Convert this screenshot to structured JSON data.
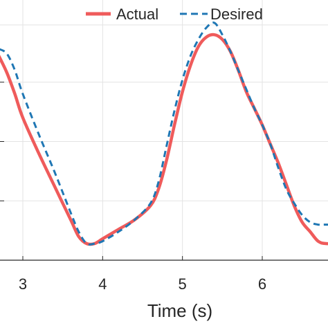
{
  "chart_data": {
    "type": "line",
    "title": "",
    "xlabel": "Time (s)",
    "ylabel": "",
    "xlim": [
      2.7,
      7.8
    ],
    "ylim": [
      0,
      1
    ],
    "x_ticks": [
      3,
      4,
      5,
      6
    ],
    "x_tick_labels": [
      "3",
      "4",
      "5",
      "6"
    ],
    "y_grid": [
      0.25,
      0.5,
      0.75
    ],
    "grid": true,
    "legend": {
      "position": "top-right",
      "orientation": "horizontal"
    },
    "series": [
      {
        "name": "Actual",
        "color": "#ef5b5b",
        "style": "solid",
        "x": [
          2.7,
          2.8,
          2.9,
          3.0,
          3.2,
          3.4,
          3.6,
          3.7,
          3.8,
          3.9,
          4.0,
          4.2,
          4.4,
          4.6,
          4.7,
          4.8,
          4.9,
          5.0,
          5.1,
          5.2,
          5.3,
          5.4,
          5.5,
          5.6,
          5.7,
          5.8,
          5.9,
          6.0,
          6.1,
          6.2,
          6.3,
          6.4,
          6.5,
          6.6,
          6.7,
          6.8,
          7.0
        ],
        "y": [
          0.86,
          0.79,
          0.7,
          0.6,
          0.45,
          0.31,
          0.17,
          0.1,
          0.07,
          0.07,
          0.09,
          0.13,
          0.17,
          0.23,
          0.3,
          0.42,
          0.57,
          0.71,
          0.82,
          0.9,
          0.94,
          0.95,
          0.93,
          0.88,
          0.8,
          0.71,
          0.64,
          0.57,
          0.49,
          0.41,
          0.32,
          0.23,
          0.16,
          0.12,
          0.08,
          0.07,
          0.07
        ]
      },
      {
        "name": "Desired",
        "color": "#1f77b4",
        "style": "dashed",
        "x": [
          2.7,
          2.8,
          2.9,
          3.0,
          3.2,
          3.4,
          3.6,
          3.7,
          3.8,
          3.9,
          4.0,
          4.2,
          4.4,
          4.6,
          4.7,
          4.8,
          4.9,
          5.0,
          5.1,
          5.2,
          5.3,
          5.4,
          5.5,
          5.6,
          5.7,
          5.8,
          5.9,
          6.0,
          6.1,
          6.2,
          6.3,
          6.4,
          6.5,
          6.6,
          6.7,
          6.8,
          7.0
        ],
        "y": [
          0.89,
          0.87,
          0.8,
          0.7,
          0.53,
          0.37,
          0.2,
          0.12,
          0.07,
          0.07,
          0.08,
          0.12,
          0.17,
          0.24,
          0.33,
          0.48,
          0.63,
          0.76,
          0.86,
          0.93,
          0.98,
          1.0,
          0.95,
          0.88,
          0.8,
          0.72,
          0.64,
          0.57,
          0.49,
          0.39,
          0.3,
          0.24,
          0.19,
          0.16,
          0.15,
          0.15,
          0.15
        ]
      }
    ]
  }
}
